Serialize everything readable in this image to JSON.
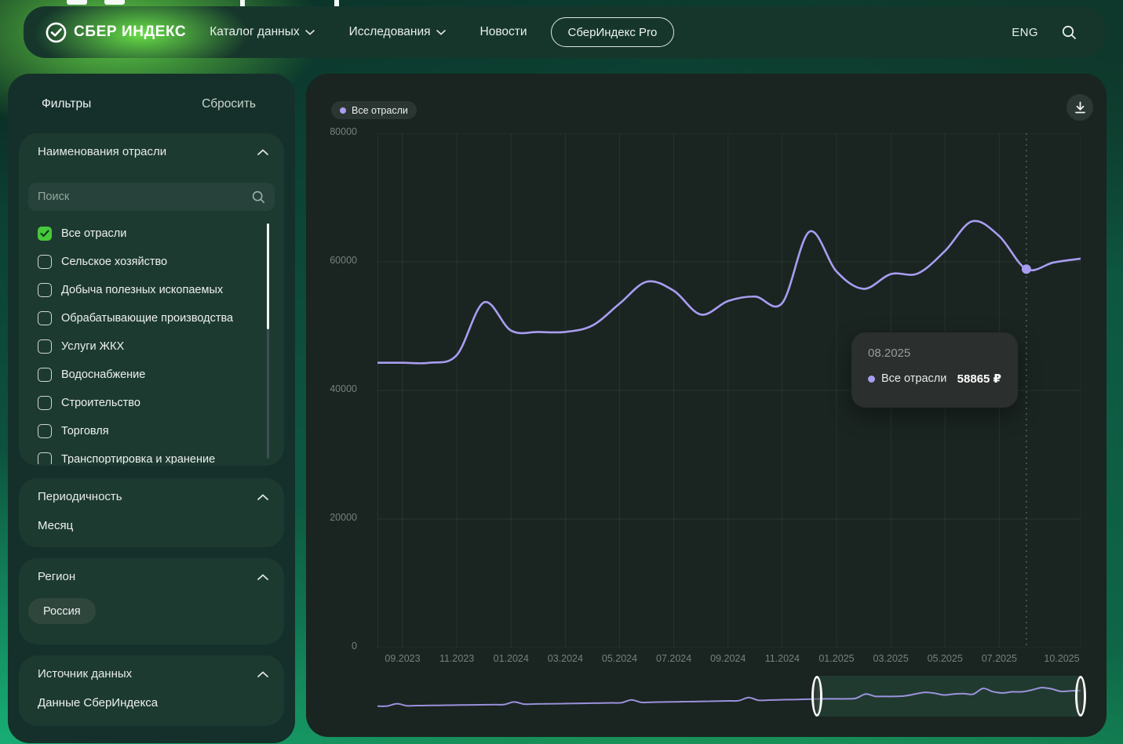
{
  "colors": {
    "accent_line": "#a89df0",
    "checkbox_checked": "#46c93a",
    "grid": "rgba(160,182,172,0.10)",
    "brush_selection": "rgba(62,150,104,0.20)"
  },
  "navbar": {
    "logo_text": "СБЕР ИНДЕКС",
    "items": [
      {
        "name": "catalog",
        "label": "Каталог данных",
        "chevron": true
      },
      {
        "name": "research",
        "label": "Исследования",
        "chevron": true
      },
      {
        "name": "news",
        "label": "Новости",
        "chevron": false
      }
    ],
    "pro_button": "СберИндекс Pro",
    "language": "ENG"
  },
  "sidebar": {
    "title": "Фильтры",
    "reset": "Сбросить",
    "industries": {
      "title": "Наименования отрасли",
      "search_placeholder": "Поиск",
      "options": [
        {
          "label": "Все отрасли",
          "checked": true
        },
        {
          "label": "Сельское хозяйство",
          "checked": false
        },
        {
          "label": "Добыча полезных ископаемых",
          "checked": false
        },
        {
          "label": "Обрабатывающие производства",
          "checked": false
        },
        {
          "label": "Услуги ЖКХ",
          "checked": false
        },
        {
          "label": "Водоснабжение",
          "checked": false
        },
        {
          "label": "Строительство",
          "checked": false
        },
        {
          "label": "Торговля",
          "checked": false
        },
        {
          "label": "Транспортировка и хранение",
          "checked": false
        }
      ]
    },
    "periodicity": {
      "title": "Периодичность",
      "value": "Месяц"
    },
    "region": {
      "title": "Регион",
      "value": "Россия"
    },
    "source": {
      "title": "Источник данных",
      "value": "Данные СберИндекса"
    }
  },
  "chart": {
    "legend": "Все отрасли",
    "tooltip": {
      "date": "08.2025",
      "series": "Все отрасли",
      "value": "58865 ₽"
    }
  },
  "chart_data": {
    "type": "line",
    "title": "",
    "xlabel": "",
    "ylabel": "",
    "ylim": [
      0,
      80000
    ],
    "y_ticks": [
      0,
      20000,
      40000,
      60000,
      80000
    ],
    "grid": true,
    "legend_position": "top-left",
    "x": [
      "09.2023",
      "10.2023",
      "11.2023",
      "12.2023",
      "01.2024",
      "02.2024",
      "03.2024",
      "04.2024",
      "05.2024",
      "06.2024",
      "07.2024",
      "08.2024",
      "09.2024",
      "10.2024",
      "11.2024",
      "12.2024",
      "01.2025",
      "02.2025",
      "03.2025",
      "04.2025",
      "05.2025",
      "06.2025",
      "07.2025",
      "08.2025",
      "09.2025",
      "10.2025"
    ],
    "series": [
      {
        "name": "Все отрасли",
        "values": [
          44300,
          44300,
          45500,
          53700,
          49300,
          49100,
          49100,
          50100,
          53500,
          56900,
          55500,
          51800,
          53900,
          54600,
          53600,
          64700,
          58500,
          55800,
          58100,
          58200,
          61700,
          66300,
          64000,
          58865,
          59900,
          60500
        ]
      }
    ],
    "x_tick_labels": [
      "09.2023",
      "11.2023",
      "01.2024",
      "03.2024",
      "05.2024",
      "07.2024",
      "09.2024",
      "11.2024",
      "01.2025",
      "03.2025",
      "05.2025",
      "07.2025",
      "10.2025"
    ],
    "x_tick_indices": [
      0,
      2,
      4,
      6,
      8,
      10,
      12,
      14,
      16,
      18,
      20,
      22,
      25
    ],
    "highlight_index": 23,
    "highlight_value": 58865
  },
  "brush": {
    "values": [
      30000,
      30200,
      34800,
      30800,
      31000,
      31300,
      31500,
      31800,
      32000,
      32300,
      32500,
      32800,
      33000,
      33300,
      38200,
      34000,
      34200,
      34500,
      34800,
      35000,
      35300,
      35600,
      35800,
      36100,
      36400,
      36700,
      42300,
      37400,
      37700,
      38000,
      38300,
      38600,
      39000,
      39300,
      39600,
      40000,
      40300,
      40700,
      46900,
      41500,
      41900,
      42300,
      42700,
      43100,
      43500,
      44000,
      44300,
      44300,
      44300,
      45500,
      53700,
      49300,
      49100,
      49100,
      50100,
      53500,
      56900,
      55500,
      51800,
      53900,
      54600,
      53600,
      64700,
      58500,
      55800,
      58100,
      58200,
      61700,
      66300,
      64000,
      58865,
      59900,
      60500
    ],
    "selection_start_index": 45,
    "selection_end_index": 72
  }
}
